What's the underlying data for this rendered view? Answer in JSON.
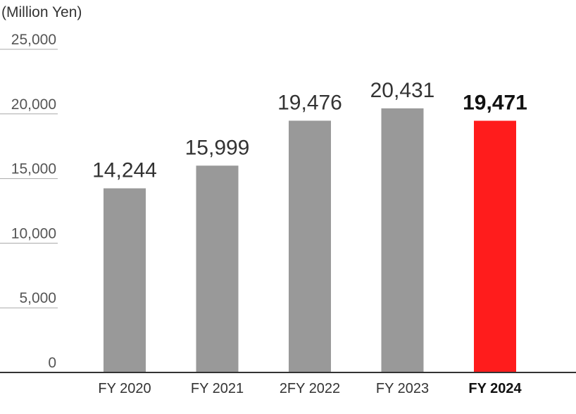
{
  "chart_data": {
    "type": "bar",
    "unit_label": "(Million Yen)",
    "categories": [
      "FY 2020",
      "FY 2021",
      "2FY 2022",
      "FY 2023",
      "FY 2024"
    ],
    "values": [
      14244,
      15999,
      19476,
      20431,
      19471
    ],
    "value_labels": [
      "14,244",
      "15,999",
      "19,476",
      "20,431",
      "19,471"
    ],
    "highlight_index": 4,
    "ylim": [
      0,
      25000
    ],
    "yticks": [
      0,
      5000,
      10000,
      15000,
      20000,
      25000
    ],
    "ytick_labels": [
      "0",
      "5,000",
      "10,000",
      "15,000",
      "20,000",
      "25,000"
    ],
    "colors": {
      "bar": "#999999",
      "highlight": "#ff1c1c",
      "axis": "#333333",
      "grid": "#aaaaaa"
    }
  }
}
